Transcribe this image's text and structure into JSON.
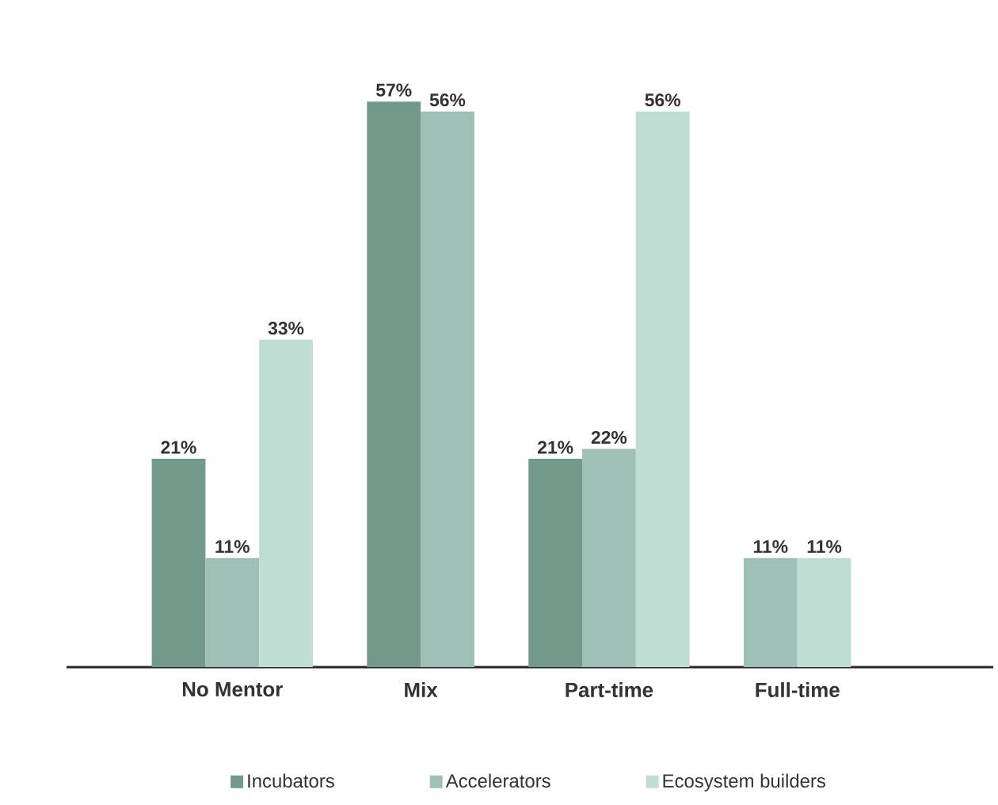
{
  "chart_data": {
    "type": "bar",
    "categories": [
      "No Mentor",
      "Mix",
      "Part-time",
      "Full-time"
    ],
    "series": [
      {
        "name": "Incubators",
        "color": "#73998a",
        "values": [
          21,
          57,
          21,
          null
        ],
        "value_labels": [
          "21%",
          "57%",
          "21%",
          null
        ]
      },
      {
        "name": "Accelerators",
        "color": "#9fc0b6",
        "values": [
          11,
          56,
          22,
          11
        ],
        "value_labels": [
          "11%",
          "56%",
          "22%",
          "11%"
        ]
      },
      {
        "name": "Ecosystem builders",
        "color": "#c0ddd3",
        "values": [
          33,
          null,
          56,
          11
        ],
        "value_labels": [
          "33%",
          null,
          "56%",
          "11%"
        ]
      }
    ],
    "legend": "bottom"
  }
}
